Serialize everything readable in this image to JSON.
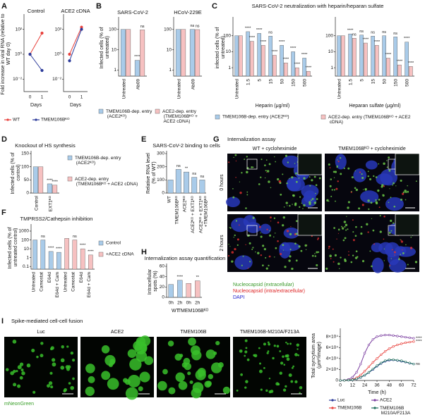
{
  "chart_data": [
    {
      "type": "line",
      "panel_label": "A",
      "title": "Control",
      "ylabel": "Fold increase in viral RNA (relative to WT day 0)",
      "xlabel": "Days",
      "categories": [
        "0",
        "1"
      ],
      "log_y": true,
      "ylim": [
        0.001,
        1000
      ],
      "yticks": [
        {
          "value": 0.01,
          "label": "10⁻²"
        },
        {
          "value": 1,
          "label": "10⁰"
        },
        {
          "value": 100,
          "label": "10²"
        }
      ],
      "legend": "below",
      "series": [
        {
          "name": "WT",
          "color": "#e8413c",
          "values": [
            1,
            50
          ]
        },
        {
          "name": "TMEM106Bᴷᴼ",
          "color": "#2b3a9a",
          "values": [
            1,
            0.05
          ]
        }
      ]
    },
    {
      "type": "line",
      "title": "ACE2 cDNA",
      "xlabel": "Days",
      "categories": [
        "0",
        "1"
      ],
      "log_y": true,
      "ylim": [
        0.001,
        1000
      ],
      "yticks": [
        {
          "value": 0.01,
          "label": "10⁻²"
        },
        {
          "value": 1,
          "label": "10⁰"
        },
        {
          "value": 100,
          "label": "10²"
        }
      ],
      "series": [
        {
          "color": "#e8413c",
          "values": [
            1,
            150
          ]
        },
        {
          "color": "#2b3a9a",
          "values": [
            0.3,
            100
          ]
        }
      ]
    },
    {
      "type": "bar",
      "panel_label": "B",
      "title": "SARS-CoV-2",
      "ylabel": "Infected cells (% of untreated)",
      "categories": [
        "Untreated",
        "Ab09"
      ],
      "log_y": true,
      "ylim": [
        0.5,
        300
      ],
      "yticks": [
        1,
        10,
        100
      ],
      "legend": "below",
      "series": [
        {
          "name": "TMEM106B-dep. entry (ACE2ᴷᴼ)",
          "color": "#a9cbe9",
          "values": [
            100,
            3
          ],
          "value_notes": [
            null,
            "****"
          ]
        },
        {
          "name": "ACE2-dep. entry (TMEM106Bᴷᴼ + ACE2 cDNA)",
          "color": "#f6c1c1",
          "values": [
            100,
            95
          ],
          "value_notes": [
            null,
            "ns"
          ]
        }
      ]
    },
    {
      "type": "bar",
      "title": "HCoV-229E",
      "categories": [
        "Untreated",
        "Ab09"
      ],
      "log_y": true,
      "ylim": [
        0.5,
        300
      ],
      "yticks": [
        1,
        10,
        100
      ],
      "series": [
        {
          "color": "#a9cbe9",
          "values": [
            100,
            100
          ],
          "value_notes": [
            null,
            "ns"
          ]
        },
        {
          "color": "#f6c1c1",
          "values": [
            100,
            98
          ],
          "value_notes": [
            null,
            "ns"
          ]
        }
      ]
    },
    {
      "type": "bar",
      "panel_label": "C",
      "title": "SARS-CoV-2 neutralization with heparin/heparan sulfate",
      "ylabel": "infected cells (% of untreated)",
      "xlabel": "Heparin (μg/ml)",
      "categories": [
        "Untreated",
        "1.5",
        "5",
        "15",
        "50",
        "150",
        "500"
      ],
      "log_y": true,
      "ylim": [
        0.3,
        1000
      ],
      "yticks": [
        1,
        10,
        100
      ],
      "legend": "below",
      "series": [
        {
          "name": "TMEM106B-dep. entry (ACE2ᴷᴼ)",
          "color": "#a9cbe9",
          "values": [
            100,
            180,
            140,
            95,
            25,
            10,
            4
          ],
          "value_notes": [
            null,
            "****",
            "****",
            "ns",
            "****",
            "****",
            "****"
          ]
        },
        {
          "name": "ACE2-dep. entry (TMEM106Bᴷᴼ + ACE2 cDNA)",
          "color": "#f6c1c1",
          "values": [
            100,
            45,
            25,
            6,
            2,
            1,
            0.6
          ],
          "value_notes": [
            null,
            "****",
            "****",
            "****",
            "****",
            "****",
            "****"
          ]
        }
      ]
    },
    {
      "type": "bar",
      "xlabel": "Heparan sulfate (μg/ml)",
      "categories": [
        "Untreated",
        "1.5",
        "5",
        "15",
        "50",
        "150",
        "500"
      ],
      "log_y": true,
      "ylim": [
        0.3,
        1000
      ],
      "yticks": [
        1,
        10,
        100
      ],
      "series": [
        {
          "color": "#a9cbe9",
          "values": [
            100,
            130,
            110,
            95,
            100,
            85,
            40
          ],
          "value_notes": [
            null,
            "****",
            "ns",
            "ns",
            "ns",
            "ns",
            "****"
          ]
        },
        {
          "color": "#f6c1c1",
          "values": [
            100,
            70,
            35,
            25,
            4,
            1.5,
            1.2
          ],
          "value_notes": [
            null,
            "ns",
            "****",
            "****",
            "****",
            "****",
            "****"
          ]
        }
      ]
    },
    {
      "type": "bar",
      "panel_label": "D",
      "title": "Knockout of HS synthesis",
      "ylabel": "Infected cells (% of control)",
      "categories": [
        "Control",
        "EXT1ᴷᴼ"
      ],
      "ylim": [
        0,
        150
      ],
      "yticks": [
        0,
        50,
        100,
        150
      ],
      "legend": "right",
      "series": [
        {
          "name": "TMEM106B-dep. entry (ACE2ᴷᴼ)",
          "color": "#a9cbe9",
          "values": [
            100,
            35
          ],
          "value_notes": [
            null,
            "****"
          ]
        },
        {
          "name": "ACE2-dep. entry (TMEM106Bᴷᴼ + ACE2 cDNA)",
          "color": "#f6c1c1",
          "values": [
            100,
            30
          ],
          "value_notes": [
            null,
            "****"
          ]
        }
      ]
    },
    {
      "type": "bar",
      "panel_label": "E",
      "title": "SARS-CoV-2 binding to cells",
      "ylabel": "Relative RNA level (% of WT)",
      "categories": [
        "WT",
        "TMEM106Bᴷᴼ",
        "ACE2ᴷᴼ",
        "ACE2ᴷᴼ + EXT1ᴷᴼ",
        "ACE2ᴷᴼ + EXT1ᴷᴼ +TMEM106Bᴷᴼ"
      ],
      "ylim": [
        0,
        300
      ],
      "yticks": [
        0,
        100,
        200,
        300
      ],
      "series": [
        {
          "color": "#a9cbe9",
          "values": [
            100,
            180,
            160,
            120,
            100
          ],
          "value_notes": [
            null,
            "ns",
            "**",
            "ns",
            "ns"
          ]
        }
      ]
    },
    {
      "type": "bar",
      "panel_label": "F",
      "title": "TMPRSS2/Cathepsin inhibition",
      "ylabel": "Infected cells (% of untreated control)",
      "categories": [
        "Untreated",
        "Camostat",
        "E64d",
        "E64d + Cam",
        "Untreated",
        "Camostat",
        "E64d",
        "E64d + Cam"
      ],
      "log_y": true,
      "ylim": [
        0.05,
        3000
      ],
      "yticks": [
        0.1,
        1,
        10,
        100,
        1000
      ],
      "dodge": false,
      "legend": "right",
      "series": [
        {
          "name": "Control",
          "color": "#a9cbe9",
          "values": [
            100,
            100,
            5,
            4,
            null,
            null,
            null,
            null
          ],
          "value_notes": [
            null,
            "ns",
            "****",
            "****",
            null,
            null,
            null,
            null
          ]
        },
        {
          "name": "+ACE2 cDNA",
          "color": "#f6c1c1",
          "values": [
            null,
            null,
            null,
            null,
            150,
            100,
            10,
            2
          ],
          "value_notes": [
            null,
            null,
            null,
            null,
            null,
            "ns",
            "****",
            "****"
          ]
        }
      ]
    },
    {
      "type": "bar",
      "panel_label": "H",
      "title": "Internalization assay quantification",
      "ylabel": "Intracellular spots (%)",
      "categories": [
        "0h",
        "2h",
        "0h",
        "2h"
      ],
      "group_labels": [
        "WT",
        "TMEM106Bᴷᴼ"
      ],
      "ylim": [
        0,
        60
      ],
      "yticks": [
        0,
        20,
        40,
        60
      ],
      "dodge": false,
      "series": [
        {
          "color": "#a9cbe9",
          "values": [
            25,
            33,
            null,
            null
          ],
          "value_notes": [
            null,
            "****",
            null,
            null
          ]
        },
        {
          "color": "#f6c1c1",
          "values": [
            null,
            null,
            27,
            32
          ],
          "value_notes": [
            null,
            null,
            null,
            "**"
          ]
        }
      ]
    },
    {
      "type": "line",
      "ylabel": "Total syncytium area (μm²/image)",
      "xlabel": "Time (h)",
      "x": [
        0,
        4,
        8,
        12,
        16,
        20,
        24,
        28,
        32,
        36,
        40,
        44,
        48,
        52,
        56,
        60,
        64,
        68,
        72
      ],
      "xlim": [
        0,
        72
      ],
      "xticks": [
        0,
        12,
        24,
        36,
        48,
        60,
        72
      ],
      "ylim": [
        0,
        90000
      ],
      "yticks": [
        0,
        {
          "value": 20000,
          "label": "2×10⁴"
        },
        {
          "value": 40000,
          "label": "4×10⁴"
        },
        {
          "value": 60000,
          "label": "6×10⁴"
        },
        {
          "value": 80000,
          "label": "8×10⁴"
        }
      ],
      "legend": "below",
      "series": [
        {
          "name": "Luc",
          "color": "#2b3a9a",
          "values": [
            0,
            150,
            500,
            1300,
            2800,
            5500,
            9500,
            14500,
            20000,
            26000,
            31000,
            35000,
            37000,
            37500,
            36500,
            35000,
            33500,
            31500,
            30000
          ]
        },
        {
          "name": "ACE2",
          "color": "#7b3fa0",
          "values": [
            0,
            500,
            2000,
            6000,
            15000,
            30000,
            50000,
            65000,
            75000,
            80000,
            82000,
            83000,
            83000,
            82000,
            81000,
            80000,
            79000,
            78000,
            77000
          ],
          "note": "****"
        },
        {
          "name": "TMEM106B",
          "color": "#e8413c",
          "values": [
            0,
            200,
            800,
            2000,
            5000,
            10000,
            17000,
            25000,
            33000,
            40000,
            47000,
            53000,
            58000,
            62000,
            65000,
            67000,
            69000,
            70000,
            71000
          ],
          "note": "****"
        },
        {
          "name": "TMEM106B M210A/F213A",
          "color": "#1f6f5c",
          "values": [
            0,
            200,
            600,
            1500,
            3000,
            6000,
            10000,
            15000,
            21000,
            27000,
            32000,
            36000,
            38000,
            38000,
            37000,
            36000,
            34000,
            32000,
            30000
          ],
          "note": "ns"
        }
      ]
    }
  ],
  "figures": [
    {
      "panel_label": "G",
      "title": "Internalization assay",
      "column_labels": [
        "WT + cycloheximide",
        "TMEM106Bᴷᴼ + cycloheximide"
      ],
      "row_labels": [
        "0 hours",
        "2 hours"
      ],
      "legend": [
        "Nucleocapsid (extracellular)",
        "Nucleocapsid (intra/extracellular)",
        "DAPI"
      ]
    },
    {
      "panel_label": "I",
      "title": "Spike-mediated cell-cell fusion",
      "column_labels": [
        "Luc",
        "ACE2",
        "TMEM106B",
        "TMEM106B-M210A/F213A"
      ],
      "channel_label": "mNeonGreen"
    }
  ]
}
